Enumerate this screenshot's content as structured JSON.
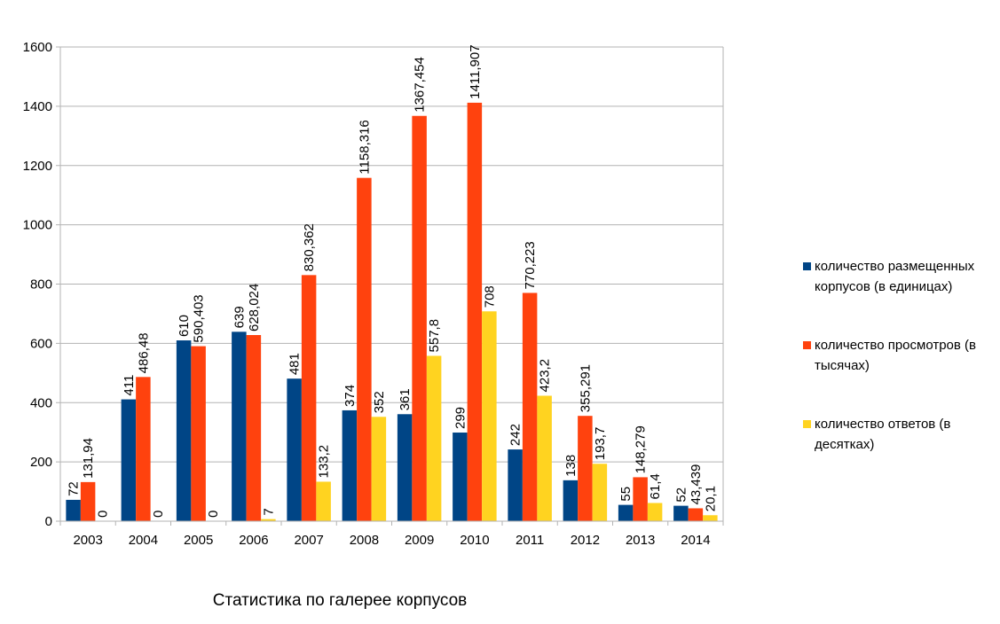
{
  "chart_data": {
    "type": "bar",
    "title": "",
    "caption": "Статистика по галерее корпусов",
    "xlabel": "",
    "ylabel": "",
    "categories": [
      "2003",
      "2004",
      "2005",
      "2006",
      "2007",
      "2008",
      "2009",
      "2010",
      "2011",
      "2012",
      "2013",
      "2014"
    ],
    "ylim": [
      0,
      1600
    ],
    "yticks": [
      0,
      200,
      400,
      600,
      800,
      1000,
      1200,
      1400,
      1600
    ],
    "yticks_text": [
      "0",
      "200",
      "400",
      "600",
      "800",
      "1000",
      "1200",
      "1400",
      "1600"
    ],
    "grid": "horizontal",
    "legend_position": "right",
    "series": [
      {
        "name_lines": [
          "количество размещенных",
          "корпусов (в единицах)"
        ],
        "color": "#004586",
        "values": [
          72,
          411,
          610,
          639,
          481,
          374,
          361,
          299,
          242,
          138,
          55,
          52
        ],
        "labels": [
          "72",
          "411",
          "610",
          "639",
          "481",
          "374",
          "361",
          "299",
          "242",
          "138",
          "55",
          "52"
        ]
      },
      {
        "name_lines": [
          "количество просмотров (в",
          "тысячах)"
        ],
        "color": "#ff420e",
        "values": [
          131.94,
          486.48,
          590.403,
          628.024,
          830.362,
          1158.316,
          1367.454,
          1411.907,
          770.223,
          355.291,
          148.279,
          43.439
        ],
        "labels": [
          "131,94",
          "486,48",
          "590,403",
          "628,024",
          "830,362",
          "1158,316",
          "1367,454",
          "1411,907",
          "770,223",
          "355,291",
          "148,279",
          "43,439"
        ]
      },
      {
        "name_lines": [
          "количество ответов (в",
          "десятках)"
        ],
        "color": "#ffd320",
        "values": [
          0,
          0,
          0,
          7,
          133.2,
          352,
          557.8,
          708,
          423.2,
          193.7,
          61.4,
          20.1
        ],
        "labels": [
          "0",
          "0",
          "0",
          "7",
          "133,2",
          "352",
          "557,8",
          "708",
          "423,2",
          "193,7",
          "61,4",
          "20,1"
        ]
      }
    ]
  }
}
